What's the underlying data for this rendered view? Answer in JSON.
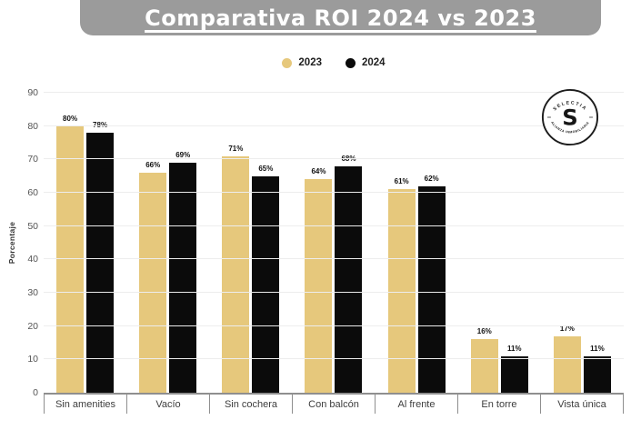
{
  "header": {
    "title": "Comparativa ROI 2024 vs 2023"
  },
  "logo": {
    "arc_top": "SELECTIA",
    "arc_bottom": "ALIANZA INMOBILIARIA",
    "monogram": "S"
  },
  "colors": {
    "banner": "#9b9b9b",
    "bar_2023": "#e6c87c",
    "bar_2024": "#0b0b0b",
    "gridline": "#ededed",
    "axis": "#8f8f8f",
    "text": "#3d3d3d"
  },
  "chart_data": {
    "type": "bar",
    "title": "Comparativa ROI 2024 vs 2023",
    "categories": [
      "Sin amenities",
      "Vacío",
      "Sin cochera",
      "Con balcón",
      "Al frente",
      "En torre",
      "Vista única"
    ],
    "series": [
      {
        "name": "2023",
        "color": "#e6c87c",
        "values": [
          80,
          66,
          71,
          64,
          61,
          16,
          17
        ]
      },
      {
        "name": "2024",
        "color": "#0b0b0b",
        "values": [
          78,
          69,
          65,
          68,
          62,
          11,
          11
        ]
      }
    ],
    "xlabel": "",
    "ylabel": "Porcentaje",
    "ylim": [
      0,
      90
    ],
    "ytick_step": 10,
    "value_suffix": "%",
    "grid": true,
    "legend_position": "top-center",
    "data_labels": true
  }
}
